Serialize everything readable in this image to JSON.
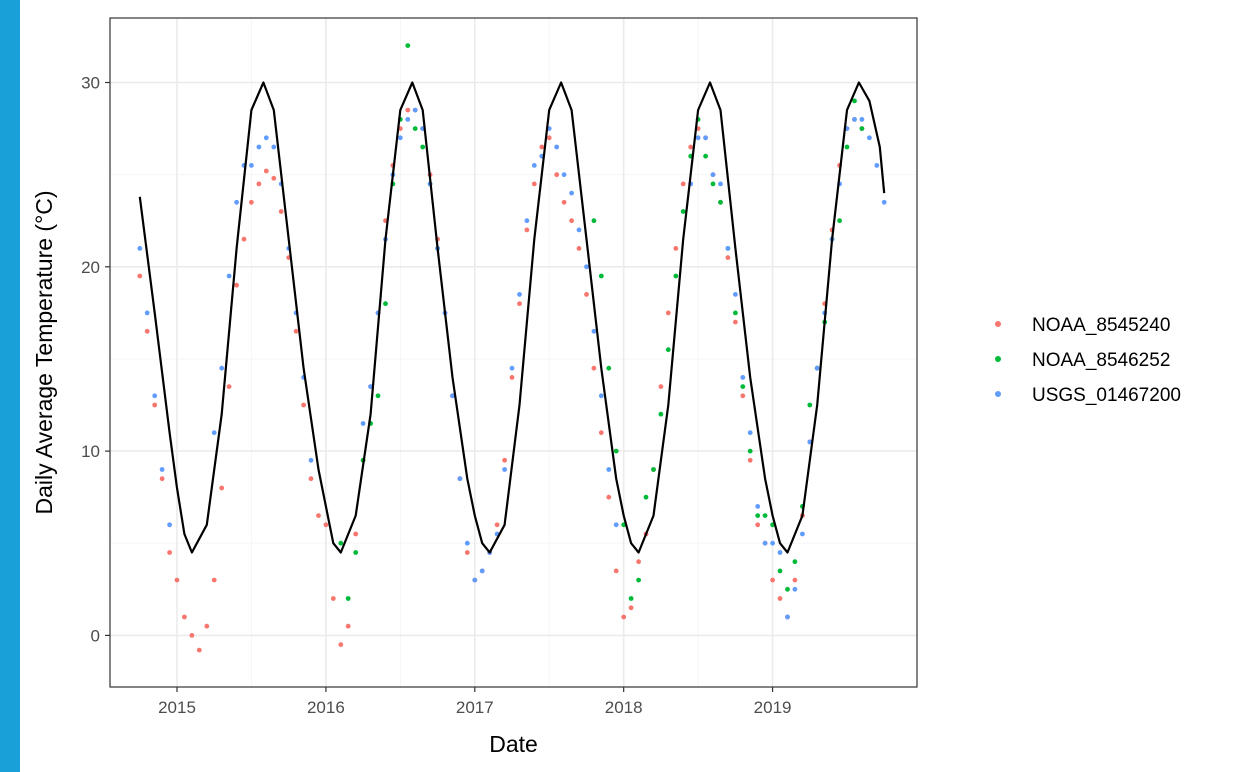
{
  "colors": {
    "slide_accent": "#1aa0d8",
    "panel_border": "#333333",
    "grid_major": "#ebebeb",
    "grid_minor": "#f5f5f5",
    "fit_line": "#000000"
  },
  "chart_data": {
    "type": "scatter",
    "xlabel": "Date",
    "ylabel": "Daily Average Temperature (°C)",
    "x_ticks": [
      "2015",
      "2016",
      "2017",
      "2018",
      "2019"
    ],
    "x_tick_values": [
      2015,
      2016,
      2017,
      2018,
      2019
    ],
    "y_ticks": [
      "0",
      "10",
      "20",
      "30"
    ],
    "y_tick_values": [
      0,
      10,
      20,
      30
    ],
    "xlim": [
      2014.55,
      2019.97
    ],
    "ylim": [
      -2.8,
      33.5
    ],
    "grid": true,
    "legend_position": "right",
    "series": [
      {
        "name": "NOAA_8545240",
        "color": "#f8766d",
        "x": [
          2014.75,
          2014.8,
          2014.85,
          2014.9,
          2014.95,
          2015.0,
          2015.05,
          2015.1,
          2015.15,
          2015.2,
          2015.25,
          2015.3,
          2015.35,
          2015.4,
          2015.45,
          2015.5,
          2015.55,
          2015.6,
          2015.65,
          2015.7,
          2015.75,
          2015.8,
          2015.85,
          2015.9,
          2015.95,
          2016.0,
          2016.05,
          2016.1,
          2016.15,
          2016.2,
          2016.25,
          2016.3,
          2016.35,
          2016.4,
          2016.45,
          2016.5,
          2016.55,
          2016.6,
          2016.65,
          2016.7,
          2016.75,
          2016.8,
          2016.85,
          2016.9,
          2016.95,
          2017.0,
          2017.05,
          2017.1,
          2017.15,
          2017.2,
          2017.25,
          2017.3,
          2017.35,
          2017.4,
          2017.45,
          2017.5,
          2017.55,
          2017.6,
          2017.65,
          2017.7,
          2017.75,
          2017.8,
          2017.85,
          2017.9,
          2017.95,
          2018.0,
          2018.05,
          2018.1,
          2018.15,
          2018.2,
          2018.25,
          2018.3,
          2018.35,
          2018.4,
          2018.45,
          2018.5,
          2018.55,
          2018.6,
          2018.65,
          2018.7,
          2018.75,
          2018.8,
          2018.85,
          2018.9,
          2018.95,
          2019.0,
          2019.05,
          2019.1,
          2019.15,
          2019.2,
          2019.25,
          2019.3,
          2019.35,
          2019.4,
          2019.45,
          2019.5,
          2019.55,
          2019.6
        ],
        "y": [
          19.5,
          16.5,
          12.5,
          8.5,
          4.5,
          3.0,
          1.0,
          0.0,
          -0.8,
          0.5,
          3.0,
          8.0,
          13.5,
          19.0,
          21.5,
          23.5,
          24.5,
          25.2,
          24.8,
          23.0,
          20.5,
          16.5,
          12.5,
          8.5,
          6.5,
          6.0,
          2.0,
          -0.5,
          0.5,
          5.5,
          9.5,
          13.5,
          17.5,
          22.5,
          25.5,
          27.5,
          28.5,
          28.5,
          27.5,
          25.0,
          21.5,
          17.5,
          13.0,
          8.5,
          4.5,
          3.0,
          3.5,
          4.5,
          6.0,
          9.5,
          14.0,
          18.0,
          22.0,
          24.5,
          26.5,
          27.0,
          25.0,
          23.5,
          22.5,
          21.0,
          18.5,
          14.5,
          11.0,
          7.5,
          3.5,
          1.0,
          1.5,
          4.0,
          5.5,
          9.0,
          13.5,
          17.5,
          21.0,
          24.5,
          26.5,
          27.5,
          27.0,
          25.0,
          23.5,
          20.5,
          17.0,
          13.0,
          9.5,
          6.0,
          5.0,
          3.0,
          2.0,
          1.0,
          3.0,
          6.5,
          10.5,
          14.5,
          18.0,
          22.0,
          25.5,
          27.5,
          28.0,
          27.5
        ]
      },
      {
        "name": "NOAA_8546252",
        "color": "#00ba38",
        "x": [
          2016.1,
          2016.15,
          2016.2,
          2016.25,
          2016.3,
          2016.35,
          2016.4,
          2016.45,
          2016.5,
          2016.55,
          2016.6,
          2016.65,
          2016.7,
          2016.75,
          2017.8,
          2017.85,
          2017.9,
          2017.95,
          2018.0,
          2018.05,
          2018.1,
          2018.15,
          2018.2,
          2018.25,
          2018.3,
          2018.35,
          2018.4,
          2018.45,
          2018.5,
          2018.55,
          2018.6,
          2018.65,
          2018.7,
          2018.75,
          2018.8,
          2018.85,
          2018.9,
          2018.95,
          2019.0,
          2019.05,
          2019.1,
          2019.15,
          2019.2,
          2019.25,
          2019.3,
          2019.35,
          2019.4,
          2019.45,
          2019.5,
          2019.55,
          2019.6
        ],
        "y": [
          5.0,
          2.0,
          4.5,
          9.5,
          11.5,
          13.0,
          18.0,
          24.5,
          28.0,
          32.0,
          27.5,
          26.5,
          24.5,
          21.0,
          22.5,
          19.5,
          14.5,
          10.0,
          6.0,
          2.0,
          3.0,
          7.5,
          9.0,
          12.0,
          15.5,
          19.5,
          23.0,
          26.0,
          28.0,
          26.0,
          24.5,
          23.5,
          21.0,
          17.5,
          13.5,
          10.0,
          6.5,
          6.5,
          6.0,
          3.5,
          2.5,
          4.0,
          7.0,
          12.5,
          14.5,
          17.0,
          21.5,
          22.5,
          26.5,
          29.0,
          27.5
        ]
      },
      {
        "name": "USGS_01467200",
        "color": "#619cff",
        "x": [
          2014.75,
          2014.8,
          2014.85,
          2014.9,
          2014.95,
          2015.25,
          2015.3,
          2015.35,
          2015.4,
          2015.45,
          2015.5,
          2015.55,
          2015.6,
          2015.65,
          2015.7,
          2015.75,
          2015.8,
          2015.85,
          2015.9,
          2016.25,
          2016.3,
          2016.35,
          2016.4,
          2016.45,
          2016.5,
          2016.55,
          2016.6,
          2016.65,
          2016.7,
          2016.75,
          2016.8,
          2016.85,
          2016.9,
          2016.95,
          2017.0,
          2017.05,
          2017.1,
          2017.15,
          2017.2,
          2017.25,
          2017.3,
          2017.35,
          2017.4,
          2017.45,
          2017.5,
          2017.55,
          2017.6,
          2017.65,
          2017.7,
          2017.75,
          2017.8,
          2017.85,
          2017.9,
          2017.95,
          2018.45,
          2018.5,
          2018.55,
          2018.6,
          2018.65,
          2018.7,
          2018.75,
          2018.8,
          2018.85,
          2018.9,
          2018.95,
          2019.0,
          2019.05,
          2019.1,
          2019.15,
          2019.2,
          2019.25,
          2019.3,
          2019.35,
          2019.4,
          2019.45,
          2019.5,
          2019.55,
          2019.6,
          2019.65,
          2019.7,
          2019.75
        ],
        "y": [
          21.0,
          17.5,
          13.0,
          9.0,
          6.0,
          11.0,
          14.5,
          19.5,
          23.5,
          25.5,
          25.5,
          26.5,
          27.0,
          26.5,
          24.5,
          21.0,
          17.5,
          14.0,
          9.5,
          11.5,
          13.5,
          17.5,
          21.5,
          25.0,
          27.0,
          28.0,
          28.5,
          27.5,
          24.5,
          21.0,
          17.5,
          13.0,
          8.5,
          5.0,
          3.0,
          3.5,
          4.5,
          5.5,
          9.0,
          14.5,
          18.5,
          22.5,
          25.5,
          26.0,
          27.5,
          26.5,
          25.0,
          24.0,
          22.0,
          20.0,
          16.5,
          13.0,
          9.0,
          6.0,
          24.5,
          27.0,
          27.0,
          25.0,
          24.5,
          21.0,
          18.5,
          14.0,
          11.0,
          7.0,
          5.0,
          5.0,
          4.5,
          1.0,
          2.5,
          5.5,
          10.5,
          14.5,
          17.5,
          21.5,
          24.5,
          27.5,
          28.0,
          28.0,
          27.0,
          25.5,
          23.5
        ]
      },
      {
        "name": "",
        "color": "#000000",
        "line": true,
        "x": [
          2014.75,
          2014.85,
          2014.95,
          2015.0,
          2015.05,
          2015.1,
          2015.2,
          2015.3,
          2015.4,
          2015.5,
          2015.58,
          2015.65,
          2015.75,
          2015.85,
          2015.95,
          2016.0,
          2016.05,
          2016.1,
          2016.2,
          2016.3,
          2016.4,
          2016.5,
          2016.58,
          2016.65,
          2016.75,
          2016.85,
          2016.95,
          2017.0,
          2017.05,
          2017.1,
          2017.2,
          2017.3,
          2017.4,
          2017.5,
          2017.58,
          2017.65,
          2017.75,
          2017.85,
          2017.95,
          2018.0,
          2018.05,
          2018.1,
          2018.2,
          2018.3,
          2018.4,
          2018.5,
          2018.58,
          2018.65,
          2018.75,
          2018.85,
          2018.95,
          2019.0,
          2019.05,
          2019.1,
          2019.2,
          2019.3,
          2019.4,
          2019.5,
          2019.58,
          2019.65,
          2019.72,
          2019.75
        ],
        "y": [
          23.8,
          17.5,
          11.0,
          8.0,
          5.5,
          4.5,
          6.0,
          12.0,
          21.0,
          28.5,
          30.0,
          28.5,
          21.5,
          14.5,
          9.0,
          7.0,
          5.0,
          4.5,
          6.5,
          12.0,
          21.5,
          28.5,
          30.0,
          28.5,
          21.0,
          14.0,
          8.5,
          6.5,
          5.0,
          4.5,
          6.0,
          12.5,
          21.5,
          28.5,
          30.0,
          28.5,
          21.5,
          14.5,
          8.5,
          6.5,
          5.0,
          4.5,
          6.5,
          12.5,
          21.5,
          28.5,
          30.0,
          28.5,
          21.0,
          14.0,
          8.5,
          6.5,
          5.0,
          4.5,
          6.5,
          12.5,
          21.5,
          28.5,
          30.0,
          29.0,
          26.5,
          24.0
        ]
      }
    ]
  }
}
